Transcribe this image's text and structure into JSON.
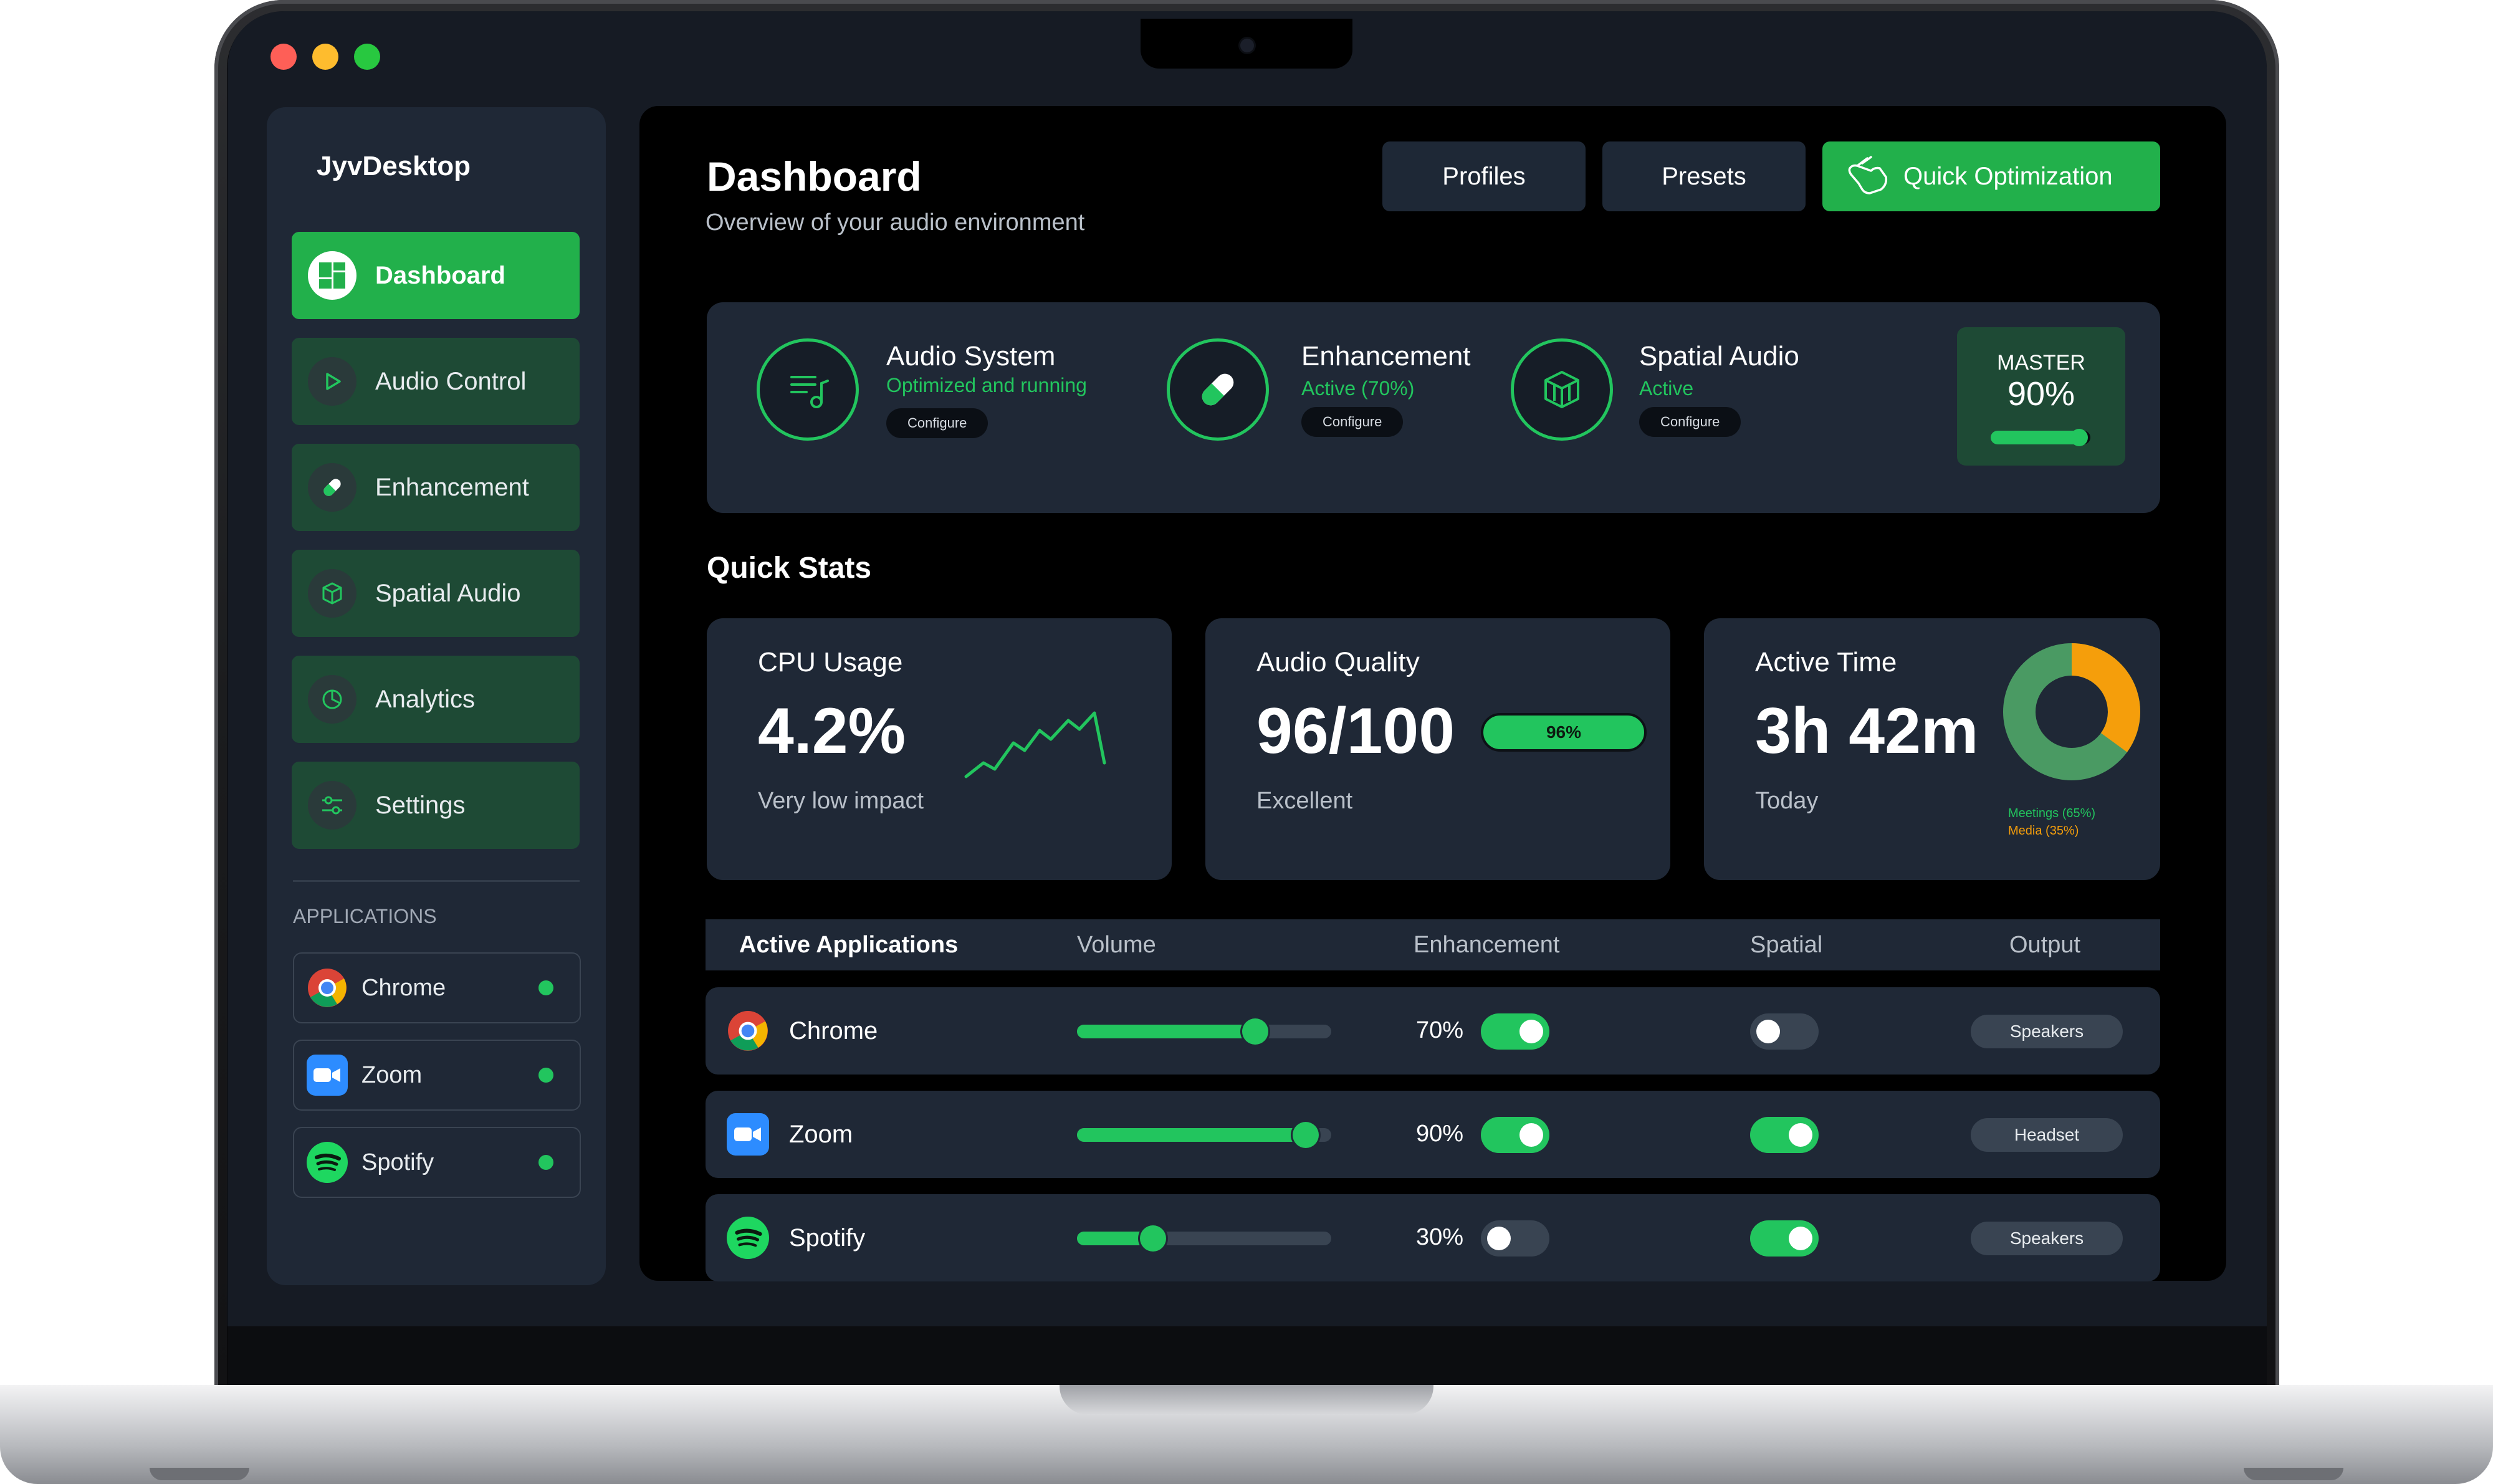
{
  "window": {
    "title": "JyvDesktop"
  },
  "sidebar": {
    "brand": "JyvDesktop",
    "items": [
      {
        "label": "Dashboard",
        "icon": "dashboard-icon",
        "active": true
      },
      {
        "label": "Audio Control",
        "icon": "play-icon",
        "active": false
      },
      {
        "label": "Enhancement",
        "icon": "pill-icon",
        "active": false
      },
      {
        "label": "Spatial Audio",
        "icon": "cube-icon",
        "active": false
      },
      {
        "label": "Analytics",
        "icon": "pie-icon",
        "active": false
      },
      {
        "label": "Settings",
        "icon": "sliders-icon",
        "active": false
      }
    ],
    "section_label": "APPLICATIONS",
    "apps": [
      {
        "name": "Chrome",
        "icon": "chrome-icon"
      },
      {
        "name": "Zoom",
        "icon": "zoom-icon"
      },
      {
        "name": "Spotify",
        "icon": "spotify-icon"
      }
    ]
  },
  "header": {
    "title": "Dashboard",
    "subtitle": "Overview of your audio environment",
    "buttons": {
      "profiles": "Profiles",
      "presets": "Presets",
      "quick": "Quick Optimization"
    }
  },
  "status": {
    "audio_system": {
      "title": "Audio System",
      "sub": "Optimized and running",
      "action": "Configure"
    },
    "enhancement": {
      "title": "Enhancement",
      "sub": "Active (70%)",
      "action": "Configure"
    },
    "spatial": {
      "title": "Spatial Audio",
      "sub": "Active",
      "action": "Configure"
    },
    "master": {
      "label": "MASTER",
      "value": "90%",
      "level": 0.9
    }
  },
  "quick_stats": {
    "title": "Quick Stats",
    "cpu": {
      "label": "CPU Usage",
      "value": "4.2%",
      "desc": "Very low impact"
    },
    "quality": {
      "label": "Audio Quality",
      "value": "96/100",
      "bar_label": "96%",
      "desc": "Excellent"
    },
    "time": {
      "label": "Active Time",
      "value": "3h 42m",
      "desc": "Today",
      "legend": [
        "Meetings (65%)",
        "Media (35%)"
      ]
    }
  },
  "table": {
    "headers": {
      "app": "Active Applications",
      "volume": "Volume",
      "enhancement": "Enhancement",
      "spatial": "Spatial",
      "output": "Output"
    },
    "rows": [
      {
        "name": "Chrome",
        "volume": 0.7,
        "enh": "70%",
        "enh_on": true,
        "spatial_on": false,
        "output": "Speakers"
      },
      {
        "name": "Zoom",
        "volume": 0.9,
        "enh": "90%",
        "enh_on": true,
        "spatial_on": true,
        "output": "Headset"
      },
      {
        "name": "Spotify",
        "volume": 0.3,
        "enh": "30%",
        "enh_on": false,
        "spatial_on": true,
        "output": "Speakers"
      }
    ]
  },
  "colors": {
    "accent": "#22c55e",
    "card": "#1f2836",
    "meetings": "#4a9a63",
    "media": "#f59e0b"
  }
}
